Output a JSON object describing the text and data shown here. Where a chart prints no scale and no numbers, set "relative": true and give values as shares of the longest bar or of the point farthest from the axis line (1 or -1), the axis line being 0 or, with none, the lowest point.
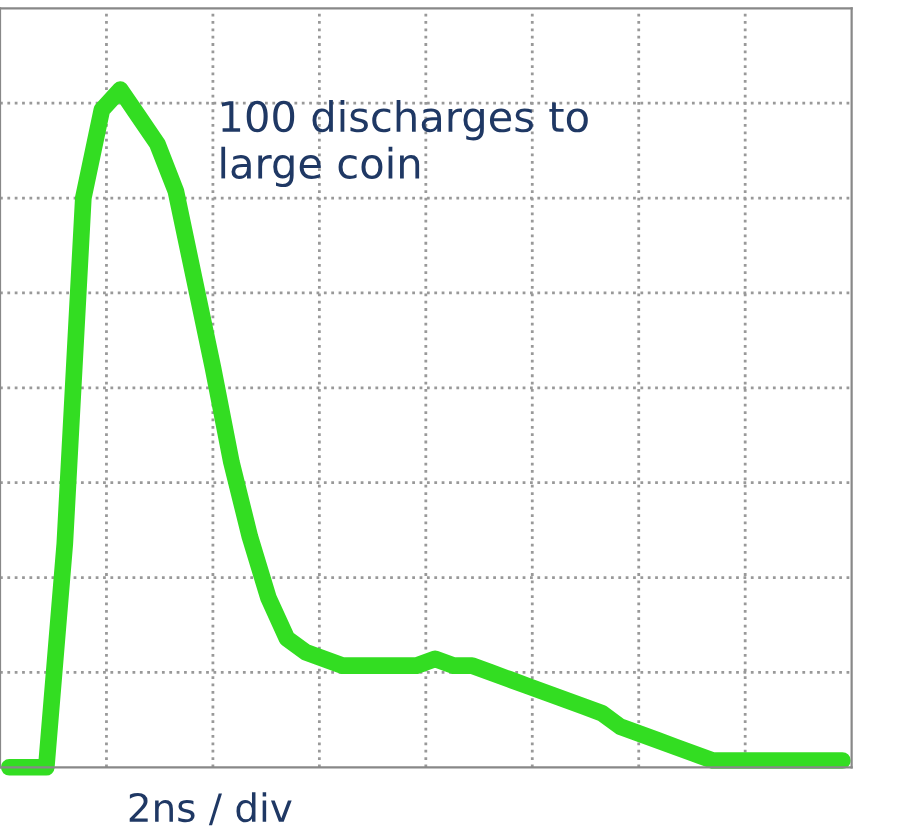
{
  "chart_data": {
    "type": "line",
    "relative": true,
    "grid": true,
    "tick_labels": false,
    "categories": [
      null,
      null,
      null,
      null,
      null,
      null,
      null,
      null,
      null,
      null,
      null,
      null,
      null,
      null,
      null,
      null,
      null,
      null,
      null,
      null,
      null,
      null,
      null,
      null,
      null,
      null,
      null,
      null,
      null,
      null,
      null,
      null,
      null,
      null,
      null,
      null,
      null,
      null,
      null,
      null,
      null,
      null,
      null,
      null,
      null,
      null
    ],
    "series": [
      {
        "color": "#33dd22",
        "values": [
          0,
          0,
          0,
          0.33,
          0.84,
          0.97,
          1,
          0.96,
          0.92,
          0.85,
          0.72,
          0.59,
          0.45,
          0.34,
          0.25,
          0.19,
          0.17,
          0.16,
          0.15,
          0.15,
          0.15,
          0.15,
          0.15,
          0.16,
          0.15,
          0.15,
          0.14,
          0.13,
          0.12,
          0.11,
          0.1,
          0.09,
          0.08,
          0.06,
          0.05,
          0.04,
          0.03,
          0.02,
          0.01,
          0.01,
          0.01,
          0.01,
          0.01,
          0.01,
          0.01,
          0.01
        ]
      }
    ],
    "annotations": [
      "100 discharges to\nlarge coin",
      "2ns / div"
    ]
  }
}
